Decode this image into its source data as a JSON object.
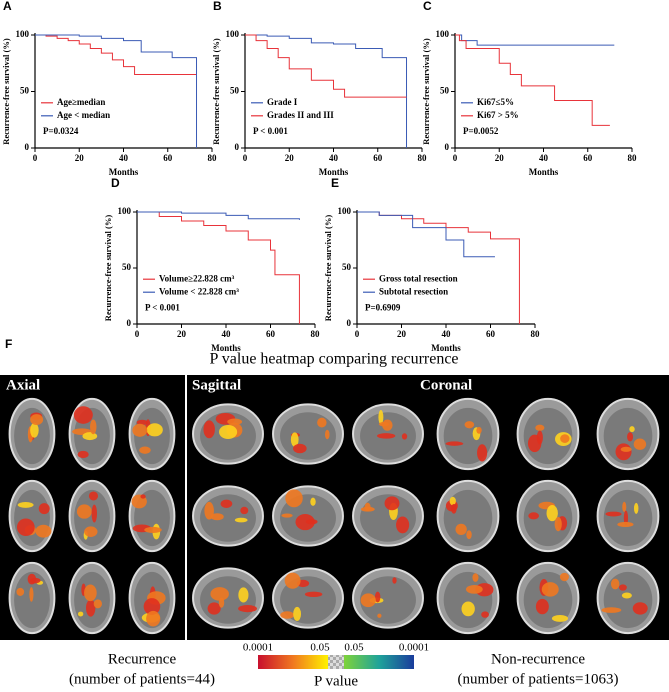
{
  "chart_data": [
    {
      "type": "step",
      "label": "A",
      "xlabel": "Months",
      "ylabel": "Recurrence-free survival (%)",
      "xlim": [
        0,
        80
      ],
      "xticks": [
        0,
        20,
        40,
        60,
        80
      ],
      "ylim": [
        0,
        100
      ],
      "yticks": [
        0,
        50,
        100
      ],
      "annotation": "P=0.0324",
      "series": [
        {
          "name": "Age≥median",
          "color": "#e8333a",
          "x": [
            0,
            5,
            10,
            15,
            20,
            25,
            30,
            35,
            40,
            45,
            73
          ],
          "values": [
            100,
            99,
            97,
            95,
            92,
            88,
            84,
            78,
            72,
            65,
            65
          ]
        },
        {
          "name": "Age < median",
          "color": "#3b5bb5",
          "x": [
            0,
            20,
            30,
            40,
            48,
            62,
            73,
            73
          ],
          "values": [
            100,
            99,
            97,
            95,
            85,
            80,
            73,
            0
          ]
        }
      ]
    },
    {
      "type": "step",
      "label": "B",
      "xlabel": "Months",
      "ylabel": "Recurrence-free survival (%)",
      "xlim": [
        0,
        80
      ],
      "xticks": [
        0,
        20,
        40,
        60,
        80
      ],
      "ylim": [
        0,
        100
      ],
      "yticks": [
        0,
        50,
        100
      ],
      "annotation": "P < 0.001",
      "series": [
        {
          "name": "Grade I",
          "color": "#3b5bb5",
          "x": [
            0,
            10,
            20,
            30,
            40,
            50,
            62,
            73,
            73
          ],
          "values": [
            100,
            99,
            97,
            93,
            92,
            88,
            80,
            73,
            0
          ]
        },
        {
          "name": "Grades II and III",
          "color": "#e8333a",
          "x": [
            0,
            5,
            10,
            15,
            20,
            30,
            40,
            45,
            73
          ],
          "values": [
            100,
            95,
            88,
            80,
            70,
            60,
            52,
            45,
            45
          ]
        }
      ]
    },
    {
      "type": "step",
      "label": "C",
      "xlabel": "Months",
      "ylabel": "Recurrence-free survival (%)",
      "xlim": [
        0,
        80
      ],
      "xticks": [
        0,
        20,
        40,
        60,
        80
      ],
      "ylim": [
        0,
        100
      ],
      "yticks": [
        0,
        50,
        100
      ],
      "annotation": "P=0.0052",
      "series": [
        {
          "name": "Ki67≤5%",
          "color": "#3b5bb5",
          "x": [
            0,
            3,
            10,
            72
          ],
          "values": [
            100,
            95,
            91,
            91
          ]
        },
        {
          "name": "Ki67 > 5%",
          "color": "#e8333a",
          "x": [
            0,
            2,
            5,
            15,
            20,
            25,
            30,
            35,
            45,
            62,
            70
          ],
          "values": [
            100,
            95,
            88,
            88,
            75,
            65,
            55,
            55,
            42,
            20,
            20
          ]
        }
      ]
    },
    {
      "type": "step",
      "label": "D",
      "xlabel": "Months",
      "ylabel": "Recurrence-free survival (%)",
      "xlim": [
        0,
        80
      ],
      "xticks": [
        0,
        20,
        40,
        60,
        80
      ],
      "ylim": [
        0,
        100
      ],
      "yticks": [
        0,
        50,
        100
      ],
      "annotation": "P < 0.001",
      "series": [
        {
          "name": "Volume≥22.828 cm³",
          "color": "#e8333a",
          "x": [
            0,
            10,
            20,
            30,
            40,
            50,
            60,
            62,
            73,
            73
          ],
          "values": [
            100,
            96,
            92,
            88,
            83,
            75,
            66,
            44,
            44,
            0
          ]
        },
        {
          "name": "Volume < 22.828 cm³",
          "color": "#3b5bb5",
          "x": [
            0,
            20,
            40,
            50,
            73
          ],
          "values": [
            100,
            99,
            97,
            94,
            93
          ]
        }
      ]
    },
    {
      "type": "step",
      "label": "E",
      "xlabel": "Months",
      "ylabel": "Recurrence-free survival (%)",
      "xlim": [
        0,
        80
      ],
      "xticks": [
        0,
        20,
        40,
        60,
        80
      ],
      "ylim": [
        0,
        100
      ],
      "yticks": [
        0,
        50,
        100
      ],
      "annotation": "P=0.6909",
      "series": [
        {
          "name": "Gross total resection",
          "color": "#e8333a",
          "x": [
            0,
            10,
            20,
            30,
            40,
            50,
            60,
            73,
            73
          ],
          "values": [
            100,
            97,
            94,
            90,
            86,
            82,
            76,
            71,
            0
          ]
        },
        {
          "name": "Subtotal resection",
          "color": "#3b5bb5",
          "x": [
            0,
            10,
            25,
            40,
            48,
            62
          ],
          "values": [
            100,
            97,
            86,
            75,
            60,
            60
          ]
        }
      ]
    }
  ],
  "panel_f": {
    "label": "F",
    "title": "P value heatmap comparing recurrence",
    "sections": [
      "Axial",
      "Sagittal",
      "Coronal"
    ],
    "colorbar_ticks": [
      "0.0001",
      "0.05",
      "0.05",
      "0.0001"
    ],
    "colorbar_title": "P value",
    "left_label": [
      "Recurrence",
      "(number of patients=44)"
    ],
    "right_label": [
      "Non-recurrence",
      "(number of patients=1063)"
    ]
  }
}
